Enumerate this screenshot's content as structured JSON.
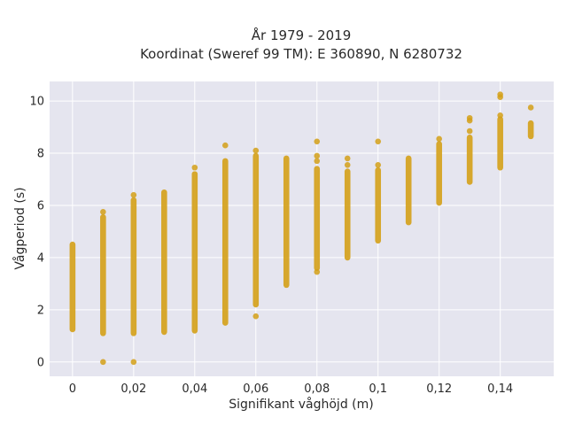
{
  "chart_data": {
    "type": "scatter",
    "title_line1": "År 1979 - 2019",
    "title_line2": "Koordinat (Sweref 99 TM): E 360890, N 6280732",
    "xlabel": "Signifikant våghöjd (m)",
    "ylabel": "Vågperiod (s)",
    "xlim": [
      -0.0075,
      0.1575
    ],
    "ylim": [
      -0.55,
      10.75
    ],
    "xticks": [
      0,
      0.02,
      0.04,
      0.06,
      0.08,
      0.1,
      0.12,
      0.14
    ],
    "xtick_labels": [
      "0",
      "0,02",
      "0,04",
      "0,06",
      "0,08",
      "0,1",
      "0,12",
      "0,14"
    ],
    "yticks": [
      0,
      2,
      4,
      6,
      8,
      10
    ],
    "ytick_labels": [
      "0",
      "2",
      "4",
      "6",
      "8",
      "10"
    ],
    "grid": true,
    "colors": {
      "marker": "#d4a017",
      "background": "#e5e5ef",
      "grid": "#ffffff"
    },
    "columns": [
      {
        "x": 0.0,
        "range": [
          1.25,
          4.5
        ],
        "outliers": []
      },
      {
        "x": 0.01,
        "range": [
          1.1,
          5.55
        ],
        "outliers": [
          0,
          5.75
        ]
      },
      {
        "x": 0.02,
        "range": [
          1.1,
          6.2
        ],
        "outliers": [
          0,
          6.4
        ]
      },
      {
        "x": 0.03,
        "range": [
          1.15,
          6.5
        ],
        "outliers": []
      },
      {
        "x": 0.04,
        "range": [
          1.2,
          7.2
        ],
        "outliers": [
          7.45
        ]
      },
      {
        "x": 0.05,
        "range": [
          1.5,
          7.7
        ],
        "outliers": [
          8.3
        ]
      },
      {
        "x": 0.06,
        "range": [
          2.2,
          7.9
        ],
        "outliers": [
          1.75,
          8.1
        ]
      },
      {
        "x": 0.07,
        "range": [
          2.95,
          7.8
        ],
        "outliers": []
      },
      {
        "x": 0.08,
        "range": [
          3.6,
          7.4
        ],
        "outliers": [
          3.45,
          7.7,
          7.9,
          8.45
        ]
      },
      {
        "x": 0.09,
        "range": [
          4.0,
          7.3
        ],
        "outliers": [
          7.55,
          7.8
        ]
      },
      {
        "x": 0.1,
        "range": [
          4.65,
          7.35
        ],
        "outliers": [
          7.55,
          8.45
        ]
      },
      {
        "x": 0.11,
        "range": [
          5.35,
          7.8
        ],
        "outliers": []
      },
      {
        "x": 0.12,
        "range": [
          6.1,
          8.35
        ],
        "outliers": [
          8.55
        ]
      },
      {
        "x": 0.13,
        "range": [
          6.9,
          8.6
        ],
        "outliers": [
          8.85,
          9.25,
          9.35
        ]
      },
      {
        "x": 0.14,
        "range": [
          7.45,
          9.3
        ],
        "outliers": [
          9.45,
          10.15,
          10.25
        ]
      },
      {
        "x": 0.15,
        "range": [
          8.65,
          9.15
        ],
        "outliers": [
          9.75
        ]
      }
    ]
  }
}
